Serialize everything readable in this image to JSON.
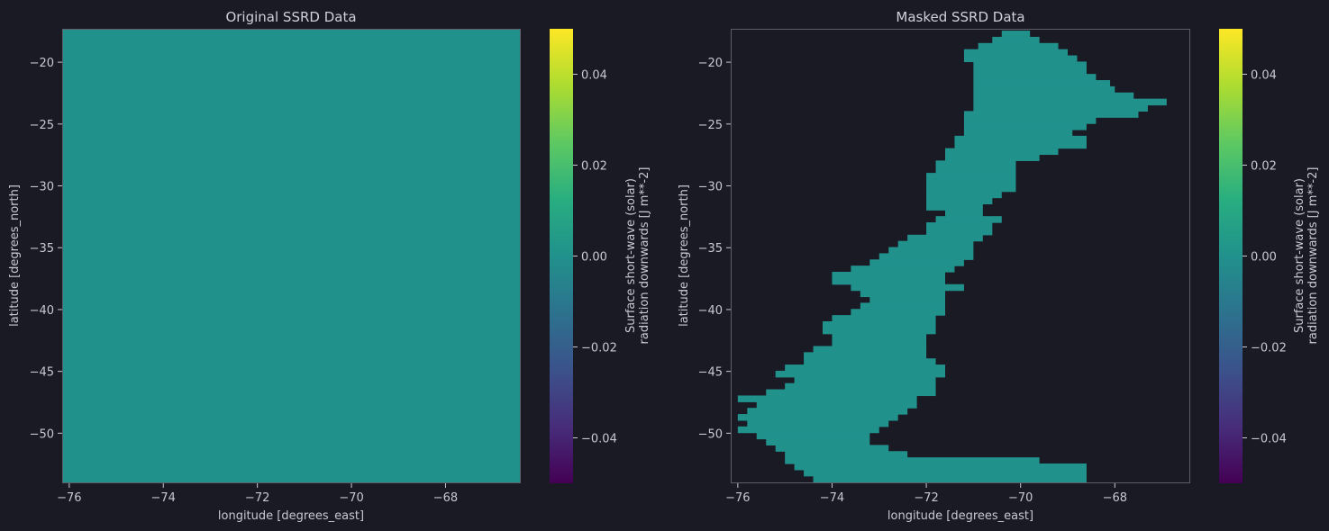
{
  "colors": {
    "background": "#1a1a24",
    "text": "#c8c8d2",
    "frame": "#5e5e6a",
    "fill": "#21918c"
  },
  "chart_data": [
    {
      "type": "heatmap",
      "title": "Original SSRD Data",
      "xlabel": "longitude [degrees_east]",
      "ylabel": "latitude [degrees_north]",
      "xlim": [
        -76.15,
        -66.4
      ],
      "ylim": [
        -54.05,
        -17.3
      ],
      "xticks": [
        -76,
        -74,
        -72,
        -70,
        -68
      ],
      "yticks": [
        -20,
        -25,
        -30,
        -35,
        -40,
        -45,
        -50
      ],
      "xtick_labels": [
        "−76",
        "−74",
        "−72",
        "−70",
        "−68"
      ],
      "ytick_labels": [
        "−20",
        "−25",
        "−30",
        "−35",
        "−40",
        "−45",
        "−50"
      ],
      "value": 0.0,
      "colorbar": {
        "colormap": "viridis",
        "range": [
          -0.05,
          0.05
        ],
        "ticks": [
          0.04,
          0.02,
          0.0,
          -0.02,
          -0.04
        ],
        "tick_labels": [
          "0.04",
          "0.02",
          "0.00",
          "−0.02",
          "−0.04"
        ],
        "label_lines": [
          "Surface short-wave (solar)",
          "radiation downwards [J m**-2]"
        ]
      }
    },
    {
      "type": "heatmap",
      "title": "Masked SSRD Data",
      "xlabel": "longitude [degrees_east]",
      "ylabel": "latitude [degrees_north]",
      "xlim": [
        -76.15,
        -66.4
      ],
      "ylim": [
        -54.05,
        -17.3
      ],
      "xticks": [
        -76,
        -74,
        -72,
        -70,
        -68
      ],
      "yticks": [
        -20,
        -25,
        -30,
        -35,
        -40,
        -45,
        -50
      ],
      "xtick_labels": [
        "−76",
        "−74",
        "−72",
        "−70",
        "−68"
      ],
      "ytick_labels": [
        "−20",
        "−25",
        "−30",
        "−35",
        "−40",
        "−45",
        "−50"
      ],
      "value": 0.0,
      "mask_spans": [
        [
          -17.7,
          -70.4,
          -69.8
        ],
        [
          -18.2,
          -70.6,
          -69.6
        ],
        [
          -18.7,
          -70.9,
          -69.2
        ],
        [
          -19.2,
          -71.2,
          -69.0
        ],
        [
          -19.7,
          -71.2,
          -68.8
        ],
        [
          -20.2,
          -71.0,
          -68.6
        ],
        [
          -20.7,
          -71.0,
          -68.6
        ],
        [
          -21.2,
          -71.0,
          -68.4
        ],
        [
          -21.7,
          -71.0,
          -68.1
        ],
        [
          -22.2,
          -71.0,
          -68.0
        ],
        [
          -22.7,
          -71.0,
          -67.6
        ],
        [
          -23.2,
          -71.0,
          -66.9
        ],
        [
          -23.7,
          -71.0,
          -67.3
        ],
        [
          -24.2,
          -71.2,
          -67.5
        ],
        [
          -24.7,
          -71.2,
          -68.4
        ],
        [
          -25.2,
          -71.2,
          -68.6
        ],
        [
          -25.7,
          -71.2,
          -68.9
        ],
        [
          -26.2,
          -71.4,
          -68.6
        ],
        [
          -26.7,
          -71.4,
          -68.6
        ],
        [
          -27.2,
          -71.6,
          -69.2
        ],
        [
          -27.7,
          -71.6,
          -69.6
        ],
        [
          -28.2,
          -71.8,
          -70.1
        ],
        [
          -28.7,
          -71.8,
          -70.1
        ],
        [
          -29.2,
          -72.0,
          -70.1
        ],
        [
          -29.7,
          -72.0,
          -70.1
        ],
        [
          -30.2,
          -72.0,
          -70.1
        ],
        [
          -30.7,
          -72.0,
          -70.4
        ],
        [
          -31.2,
          -72.0,
          -70.6
        ],
        [
          -31.7,
          -72.0,
          -70.8
        ],
        [
          -32.2,
          -71.6,
          -70.8
        ],
        [
          -32.7,
          -71.8,
          -70.4
        ],
        [
          -33.2,
          -72.0,
          -70.6
        ],
        [
          -33.7,
          -72.0,
          -70.6
        ],
        [
          -34.2,
          -72.4,
          -70.8
        ],
        [
          -34.7,
          -72.6,
          -71.0
        ],
        [
          -35.2,
          -72.8,
          -71.0
        ],
        [
          -35.7,
          -73.0,
          -71.0
        ],
        [
          -36.2,
          -73.2,
          -71.2
        ],
        [
          -36.7,
          -73.6,
          -71.4
        ],
        [
          -37.2,
          -74.0,
          -71.6
        ],
        [
          -37.7,
          -74.0,
          -71.6
        ],
        [
          -38.2,
          -73.6,
          -71.2
        ],
        [
          -38.7,
          -73.4,
          -71.6
        ],
        [
          -39.2,
          -73.2,
          -71.6
        ],
        [
          -39.7,
          -73.4,
          -71.6
        ],
        [
          -40.2,
          -73.6,
          -71.6
        ],
        [
          -40.7,
          -74.0,
          -71.8
        ],
        [
          -41.2,
          -74.2,
          -71.8
        ],
        [
          -41.7,
          -74.2,
          -71.8
        ],
        [
          -42.2,
          -74.0,
          -72.0
        ],
        [
          -42.7,
          -74.0,
          -72.0
        ],
        [
          -43.2,
          -74.4,
          -72.0
        ],
        [
          -43.7,
          -74.6,
          -72.0
        ],
        [
          -44.2,
          -74.6,
          -71.8
        ],
        [
          -44.7,
          -75.0,
          -71.6
        ],
        [
          -45.2,
          -75.2,
          -71.6
        ],
        [
          -45.7,
          -74.8,
          -71.8
        ],
        [
          -46.2,
          -75.0,
          -71.8
        ],
        [
          -46.7,
          -75.4,
          -71.8
        ],
        [
          -47.2,
          -76.0,
          -72.2
        ],
        [
          -47.7,
          -75.6,
          -72.2
        ],
        [
          -48.2,
          -75.8,
          -72.4
        ],
        [
          -48.7,
          -76.0,
          -72.6
        ],
        [
          -49.2,
          -75.8,
          -72.8
        ],
        [
          -49.7,
          -76.0,
          -73.0
        ],
        [
          -50.2,
          -75.6,
          -73.2
        ],
        [
          -50.7,
          -75.4,
          -73.2
        ],
        [
          -51.2,
          -75.2,
          -72.8
        ],
        [
          -51.7,
          -75.0,
          -72.4
        ],
        [
          -52.2,
          -75.0,
          -69.6
        ],
        [
          -52.7,
          -74.8,
          -68.6
        ],
        [
          -53.2,
          -74.6,
          -68.6
        ],
        [
          -53.7,
          -74.4,
          -68.6
        ]
      ],
      "colorbar": {
        "colormap": "viridis",
        "range": [
          -0.05,
          0.05
        ],
        "ticks": [
          0.04,
          0.02,
          0.0,
          -0.02,
          -0.04
        ],
        "tick_labels": [
          "0.04",
          "0.02",
          "0.00",
          "−0.02",
          "−0.04"
        ],
        "label_lines": [
          "Surface short-wave (solar)",
          "radiation downwards [J m**-2]"
        ]
      }
    }
  ]
}
